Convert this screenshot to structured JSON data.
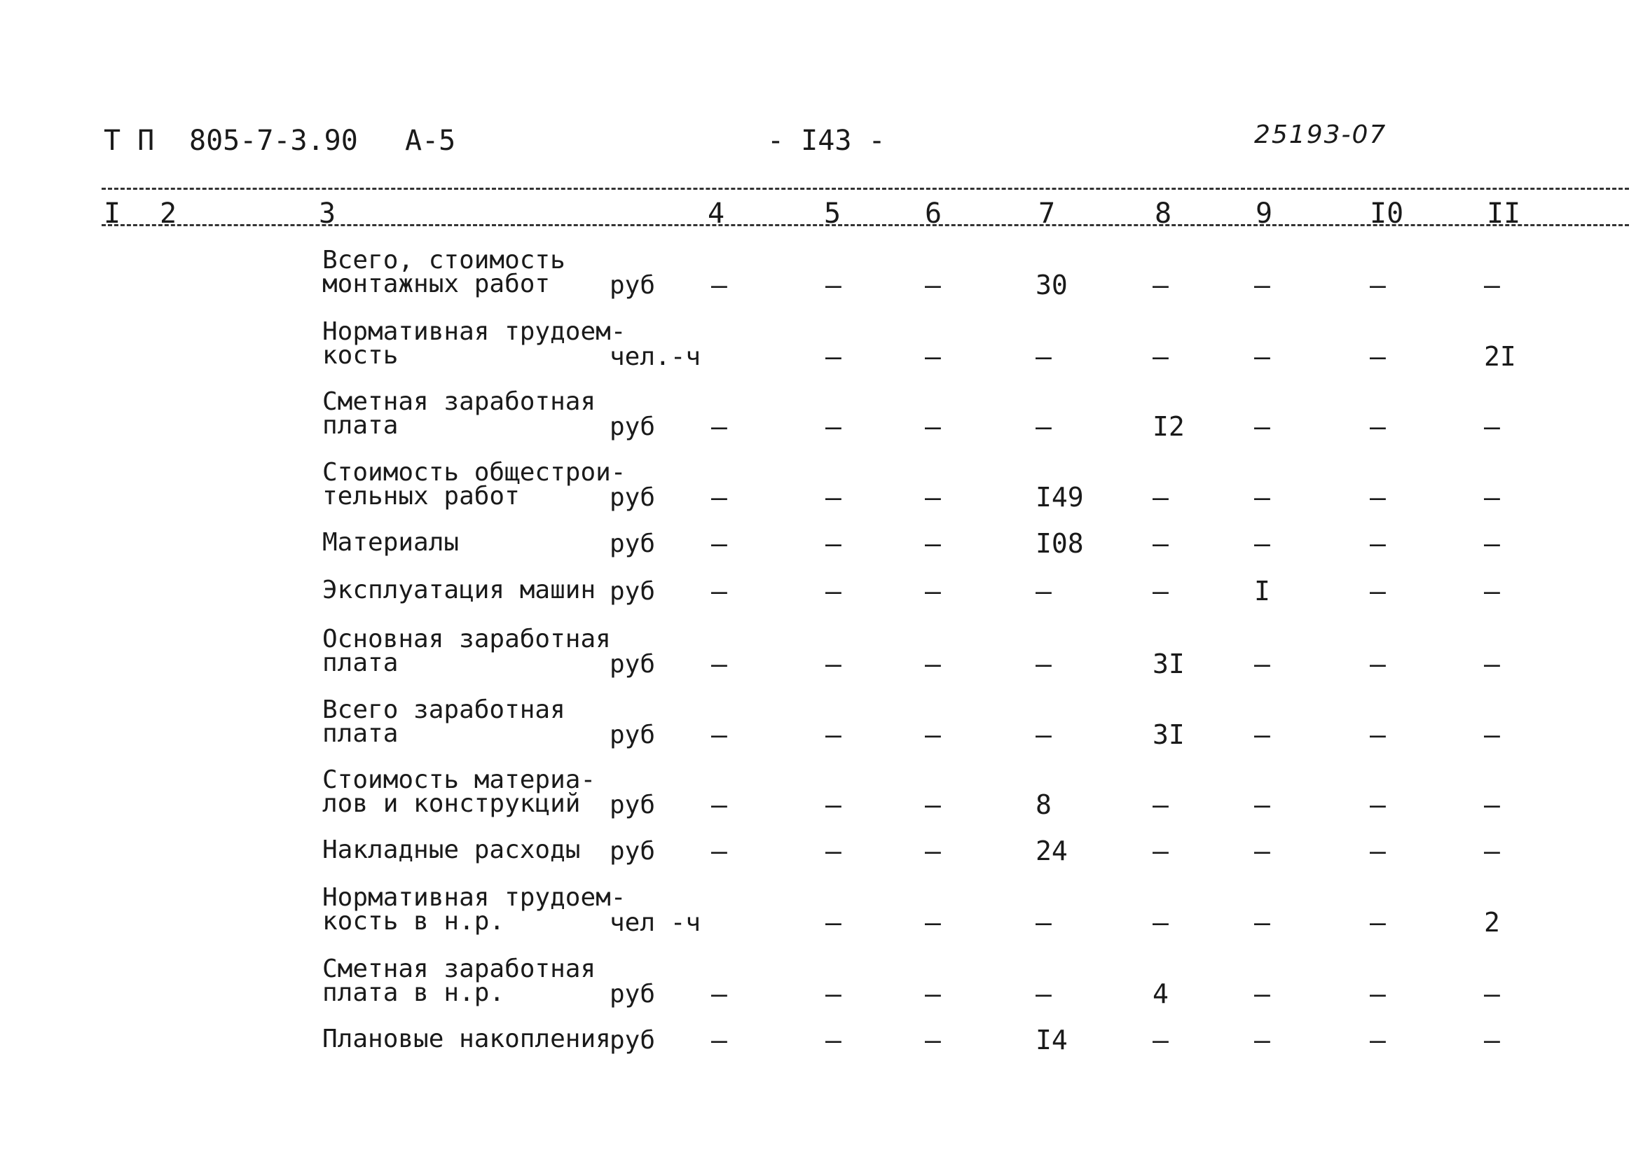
{
  "header": {
    "series": "Т П",
    "project": "805-7-3.90",
    "album": "А-5",
    "page": "- I43 -",
    "handwritten": "25193-07"
  },
  "columns": [
    "I",
    "2",
    "3",
    "4",
    "5",
    "6",
    "7",
    "8",
    "9",
    "I0",
    "II"
  ],
  "rows": [
    {
      "label": [
        "Всего, стоимость",
        "монтажных работ"
      ],
      "unit": "руб",
      "values": [
        "–",
        "–",
        "–",
        "30",
        "–",
        "–",
        "–",
        "–"
      ]
    },
    {
      "label": [
        "Нормативная трудоем-",
        "кость"
      ],
      "unit": "чел.-ч",
      "values": [
        "",
        "–",
        "–",
        "–",
        "–",
        "–",
        "–",
        "2I"
      ]
    },
    {
      "label": [
        "Сметная заработная",
        "плата"
      ],
      "unit": "руб",
      "values": [
        "–",
        "–",
        "–",
        "–",
        "I2",
        "–",
        "–",
        "–"
      ]
    },
    {
      "label": [
        "Стоимость общестрои-",
        "тельных работ"
      ],
      "unit": "руб",
      "values": [
        "–",
        "–",
        "–",
        "I49",
        "–",
        "–",
        "–",
        "–"
      ]
    },
    {
      "label": [
        "Материалы"
      ],
      "unit": "руб",
      "values": [
        "–",
        "–",
        "–",
        "I08",
        "–",
        "–",
        "–",
        "–"
      ]
    },
    {
      "label": [
        "Эксплуатация машин"
      ],
      "unit": "руб",
      "values": [
        "–",
        "–",
        "–",
        "–",
        "–",
        "I",
        "–",
        "–"
      ]
    },
    {
      "label": [
        "Основная заработная",
        "плата"
      ],
      "unit": "руб",
      "values": [
        "–",
        "–",
        "–",
        "–",
        "3I",
        "–",
        "–",
        "–"
      ]
    },
    {
      "label": [
        "Всего заработная",
        "плата"
      ],
      "unit": "руб",
      "values": [
        "–",
        "–",
        "–",
        "–",
        "3I",
        "–",
        "–",
        "–"
      ]
    },
    {
      "label": [
        "Стоимость материа-",
        "лов и конструкций"
      ],
      "unit": "руб",
      "values": [
        "–",
        "–",
        "–",
        "8",
        "–",
        "–",
        "–",
        "–"
      ]
    },
    {
      "label": [
        "Накладные расходы"
      ],
      "unit": "руб",
      "values": [
        "–",
        "–",
        "–",
        "24",
        "–",
        "–",
        "–",
        "–"
      ]
    },
    {
      "label": [
        "Нормативная трудоем-",
        "кость в н.р."
      ],
      "unit": "чел -ч",
      "values": [
        "",
        "–",
        "–",
        "–",
        "–",
        "–",
        "–",
        "2"
      ]
    },
    {
      "label": [
        "Сметная заработная",
        "плата в н.р."
      ],
      "unit": "руб",
      "values": [
        "–",
        "–",
        "–",
        "–",
        "4",
        "–",
        "–",
        "–"
      ]
    },
    {
      "label": [
        "Плановые накопления"
      ],
      "unit": "руб",
      "values": [
        "–",
        "–",
        "–",
        "I4",
        "–",
        "–",
        "–",
        "–"
      ]
    }
  ]
}
